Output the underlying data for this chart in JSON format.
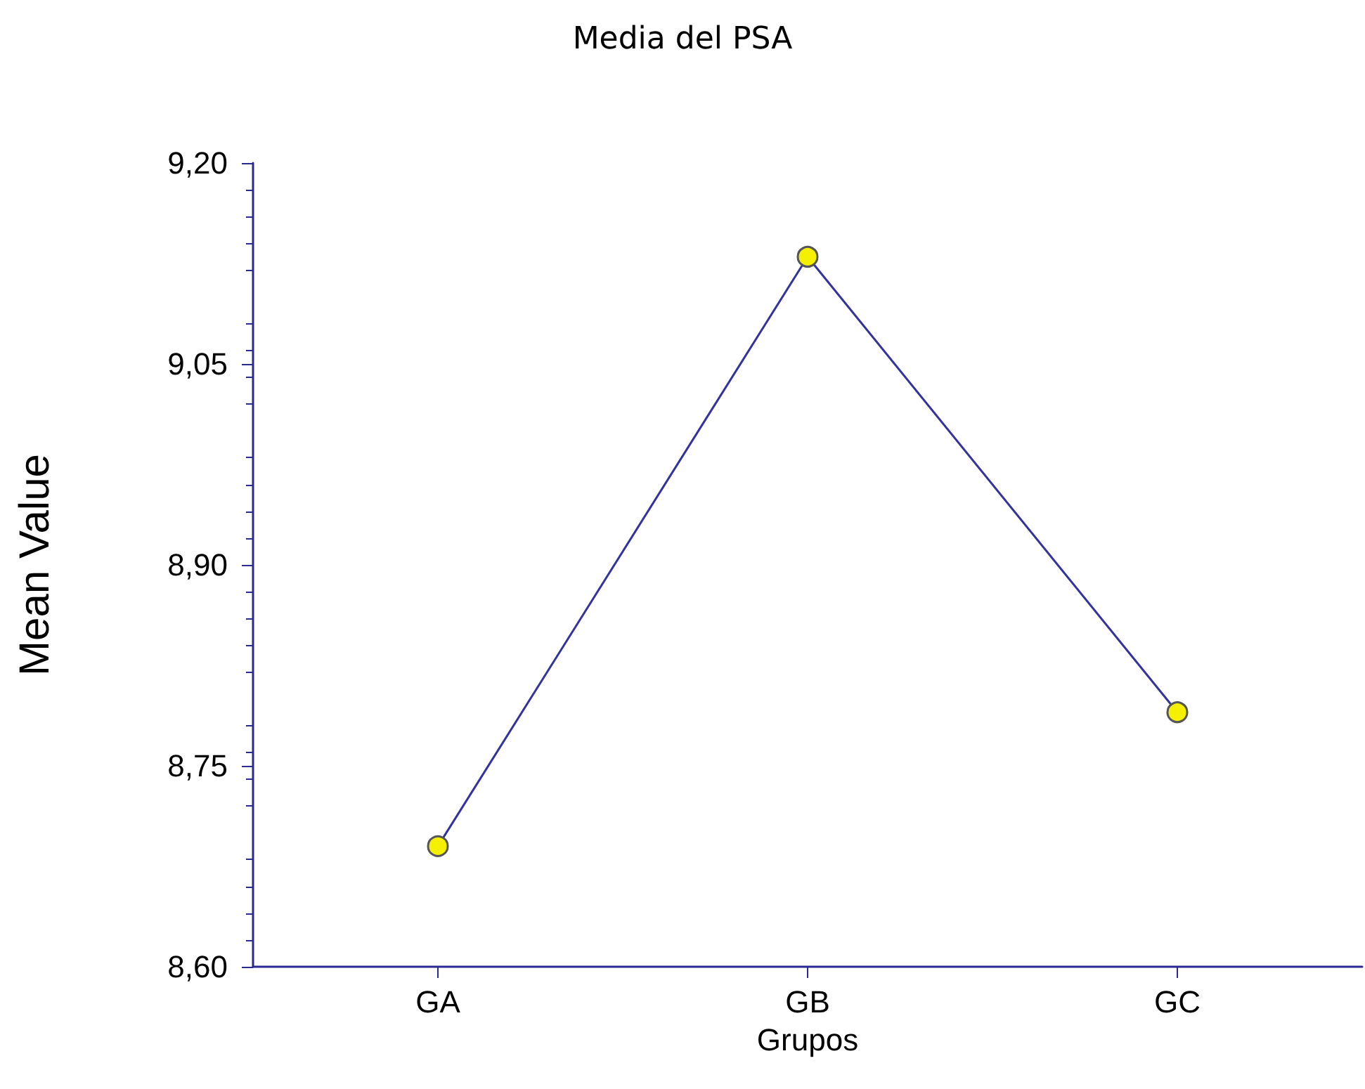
{
  "chart_data": {
    "type": "line",
    "title": "Media del PSA",
    "xlabel": "Grupos",
    "ylabel": "Mean Value",
    "categories": [
      "GA",
      "GB",
      "GC"
    ],
    "series": [
      {
        "color": "#3333a0",
        "values": [
          8.69,
          9.13,
          8.79
        ]
      }
    ],
    "ylim": [
      8.6,
      9.2
    ],
    "yticks": [
      {
        "value": 8.6,
        "label": "8,60"
      },
      {
        "value": 8.75,
        "label": "8,75"
      },
      {
        "value": 8.9,
        "label": "8,90"
      },
      {
        "value": 9.05,
        "label": "9,05"
      },
      {
        "value": 9.2,
        "label": "9,20"
      }
    ],
    "marker": "circle",
    "line_style": "solid",
    "grid": false
  }
}
